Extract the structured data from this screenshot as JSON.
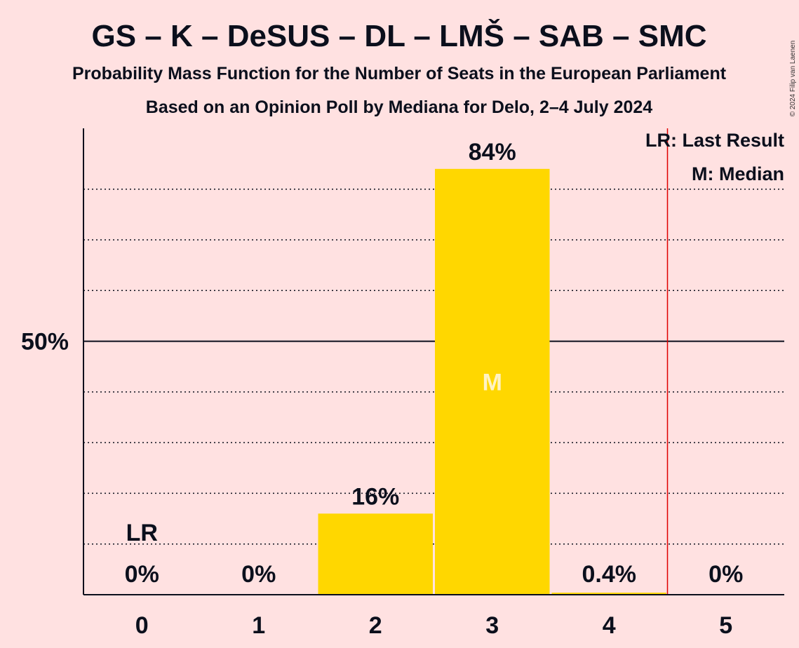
{
  "chart_data": {
    "type": "bar",
    "title": "GS – K – DeSUS – DL – LMŠ – SAB – SMC",
    "subtitle": "Probability Mass Function for the Number of Seats in the European Parliament",
    "subtitle2": "Based on an Opinion Poll by Mediana for Delo, 2–4 July 2024",
    "copyright": "© 2024 Filip van Laenen",
    "categories": [
      "0",
      "1",
      "2",
      "3",
      "4",
      "5"
    ],
    "values": [
      0,
      0,
      16,
      84,
      0.4,
      0
    ],
    "value_labels": [
      "0%",
      "0%",
      "16%",
      "84%",
      "0.4%",
      "0%"
    ],
    "ylim": [
      0,
      92
    ],
    "y_tick_label": "50%",
    "y_tick_value": 50,
    "gridlines": [
      10,
      20,
      30,
      40,
      60,
      70,
      80
    ],
    "last_result": {
      "category_index": 0,
      "label": "LR",
      "line_at": 4.5
    },
    "median": {
      "category_index": 3,
      "label": "M"
    },
    "legend": [
      "LR: Last Result",
      "M: Median"
    ],
    "legend_position": "top-right",
    "bar_color": "#FFD700",
    "last_result_line_color": "#E00000",
    "background_color": "#FFE1E1"
  }
}
